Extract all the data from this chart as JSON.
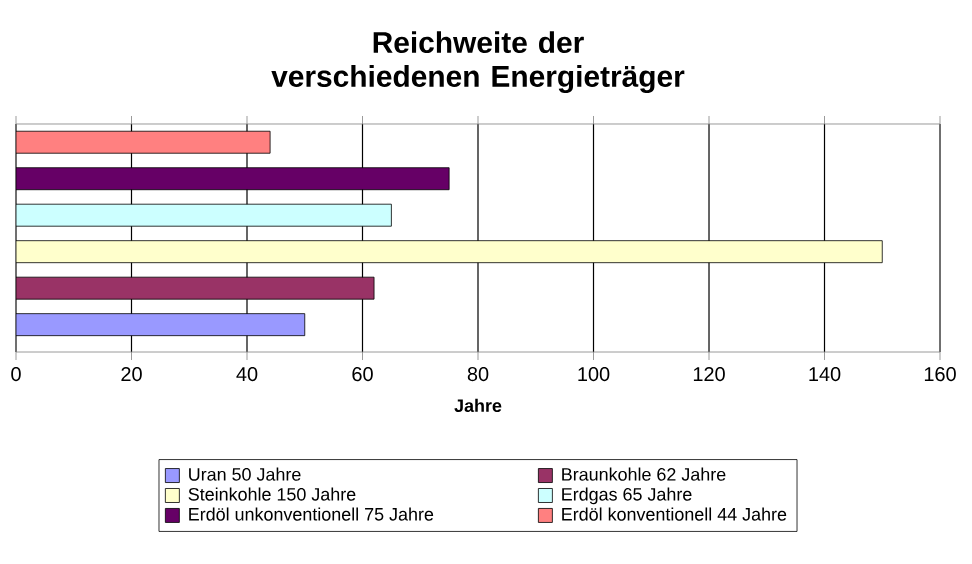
{
  "chart_data": {
    "type": "bar",
    "orientation": "horizontal",
    "title": "Reichweite der verschiedenen Energieträger",
    "xlabel": "Jahre",
    "categories": [
      null,
      null,
      null,
      null,
      null,
      null
    ],
    "series": [
      {
        "name": "Uran 50 Jahre",
        "color": "#9999ff",
        "values": [
          null,
          null,
          null,
          null,
          null,
          50
        ]
      },
      {
        "name": "Braunkohle 62 Jahre",
        "color": "#993366",
        "values": [
          null,
          null,
          null,
          null,
          62,
          null
        ]
      },
      {
        "name": "Steinkohle 150 Jahre",
        "color": "#ffffcc",
        "values": [
          null,
          null,
          null,
          150,
          null,
          null
        ]
      },
      {
        "name": "Erdgas 65 Jahre",
        "color": "#ccffff",
        "values": [
          null,
          null,
          65,
          null,
          null,
          null
        ]
      },
      {
        "name": "Erdöl unkonventionell 75 Jahre",
        "color": "#660066",
        "values": [
          null,
          75,
          null,
          null,
          null,
          null
        ]
      },
      {
        "name": "Erdöl konventionell 44 Jahre",
        "color": "#ff8080",
        "values": [
          44,
          null,
          null,
          null,
          null,
          null
        ]
      }
    ],
    "xlim": [
      0,
      160
    ],
    "xticks": [
      0,
      20,
      40,
      60,
      80,
      100,
      120,
      140,
      160
    ],
    "grid": "x",
    "legend": "bottom"
  }
}
